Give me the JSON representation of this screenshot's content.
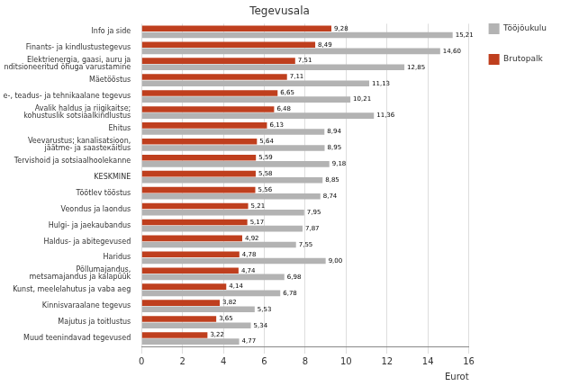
{
  "chart_data": {
    "type": "bar",
    "orientation": "horizontal",
    "title": "Tegevusala",
    "x_label": "Eurot",
    "categories": [
      "Info ja side",
      "Finants- ja kindlustustegevus",
      "Elektrienergia, gaasi, auru ja\nkonditsioneeritud õhuga varustamine",
      "Mäetööstus",
      "Kutse-, teadus- ja tehnikaalane tegevus",
      "Avalik haldus ja riigikaitse;\nkohustuslik sotsiaalkindlustus",
      "Ehitus",
      "Veevarustus; kanalisatsioon,\njäätme- ja saastекäitlus",
      "Tervishoid ja sotsiaalhoolekanne",
      "KESKMINE",
      "Töötlev tööstus",
      "Veondus ja laondus",
      "Hulgi- ja jaekaubandus",
      "Haldus- ja abitegevused",
      "Haridus",
      "Põllumajandus,\nmetsamajandus ja kalapüük",
      "Kunst, meelelahutus ja vaba aeg",
      "Kinnisvaraalane tegevus",
      "Majutus ja toitlustus",
      "Muud teenindavad tegevused"
    ],
    "series": [
      {
        "name": "Brutopalk",
        "color": "#bf3f1e",
        "values": [
          9.28,
          8.49,
          7.51,
          7.11,
          6.65,
          6.48,
          6.13,
          5.64,
          5.59,
          5.58,
          5.56,
          5.21,
          5.17,
          4.92,
          4.78,
          4.74,
          4.14,
          3.82,
          3.65,
          3.22
        ],
        "value_labels": [
          "9,28",
          "8,49",
          "7,51",
          "7,11",
          "6,65",
          "6,48",
          "6,13",
          "5,64",
          "5,59",
          "5,58",
          "5,56",
          "5,21",
          "5,17",
          "4,92",
          "4,78",
          "4,74",
          "4,14",
          "3,82",
          "3,65",
          "3,22"
        ]
      },
      {
        "name": "Tööjõukulu",
        "color": "#b3b3b3",
        "values": [
          15.21,
          14.6,
          12.85,
          11.13,
          10.21,
          11.36,
          8.94,
          8.95,
          9.18,
          8.85,
          8.74,
          7.95,
          7.87,
          7.55,
          9.0,
          6.98,
          6.78,
          5.53,
          5.34,
          4.77
        ],
        "value_labels": [
          "15,21",
          "14,60",
          "12,85",
          "11,13",
          "10,21",
          "11,36",
          "8,94",
          "8,95",
          "9,18",
          "8,85",
          "8,74",
          "7,95",
          "7,87",
          "7,55",
          "9,00",
          "6,98",
          "6,78",
          "5,53",
          "5,34",
          "4,77"
        ]
      }
    ],
    "xlim": [
      0,
      16
    ],
    "xticks": [
      0,
      2,
      4,
      6,
      8,
      10,
      12,
      14,
      16
    ],
    "grid": true,
    "legend": "right",
    "data_labels": true
  }
}
